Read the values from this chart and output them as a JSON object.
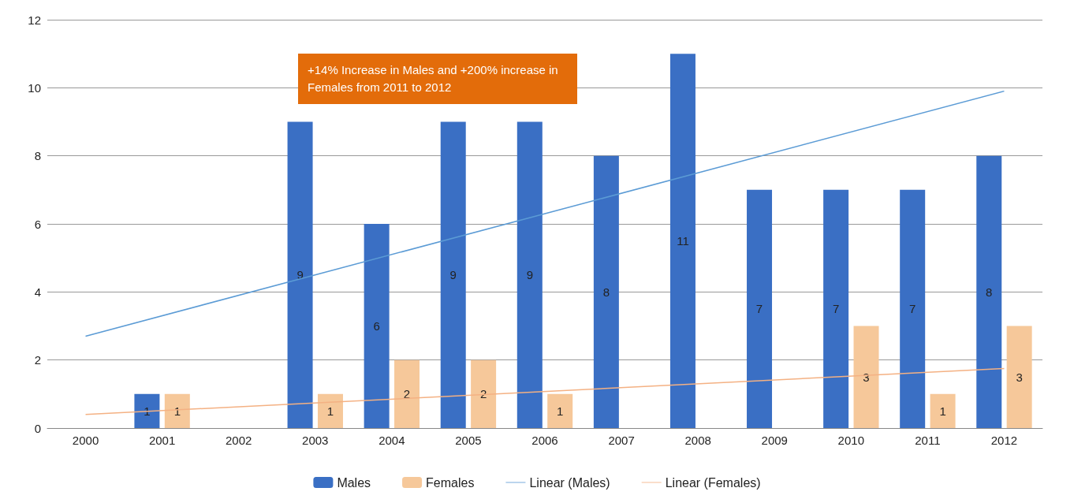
{
  "chart_data": {
    "type": "bar",
    "categories": [
      "2000",
      "2001",
      "2002",
      "2003",
      "2004",
      "2005",
      "2006",
      "2007",
      "2008",
      "2009",
      "2010",
      "2011",
      "2012"
    ],
    "series": [
      {
        "name": "Males",
        "color": "#3a6fc4",
        "values": [
          null,
          1,
          null,
          9,
          6,
          9,
          9,
          8,
          11,
          7,
          7,
          7,
          8
        ],
        "value_labels": [
          null,
          "1",
          null,
          "9",
          "6",
          "9",
          "9",
          "8",
          "11",
          "7",
          "7",
          "7",
          "8"
        ]
      },
      {
        "name": "Females",
        "color": "#f6c89a",
        "values": [
          null,
          1,
          null,
          1,
          2,
          2,
          1,
          null,
          null,
          null,
          3,
          1,
          3
        ],
        "value_labels": [
          null,
          "1",
          null,
          "1",
          "2",
          "2",
          "1",
          null,
          null,
          null,
          "3",
          "1",
          "3"
        ]
      },
      {
        "name": "Linear (Males)",
        "type": "line",
        "color": "#5b9bd5",
        "values": [
          2.7,
          null,
          null,
          null,
          null,
          null,
          null,
          null,
          null,
          null,
          null,
          null,
          9.9
        ]
      },
      {
        "name": "Linear (Females)",
        "type": "line",
        "color": "#f4b183",
        "values": [
          0.4,
          null,
          null,
          null,
          null,
          null,
          null,
          null,
          null,
          null,
          null,
          null,
          1.75
        ]
      }
    ],
    "ylim": [
      0,
      12
    ],
    "yticks": [
      0,
      2,
      4,
      6,
      8,
      10,
      12
    ],
    "grid": "y",
    "legend": "bottom",
    "marker": "none",
    "line_style": "solid",
    "annotations": [
      "+14%  Increase in Males and +200% increase in Females from 2011 to 2012"
    ]
  }
}
